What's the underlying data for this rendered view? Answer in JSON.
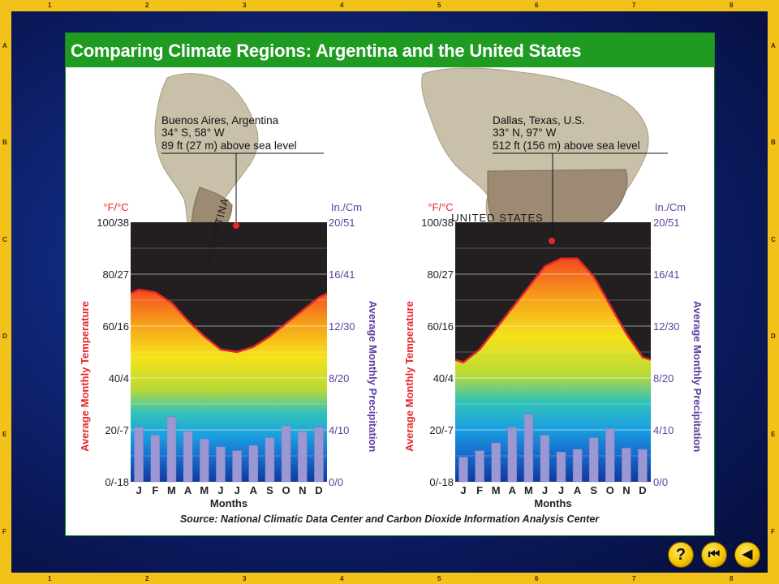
{
  "title": "Comparing Climate Regions: Argentina and the United States",
  "source": "Source: National Climatic Data Center and Carbon Dioxide Information Analysis Center",
  "ruler": {
    "top": [
      "1",
      "2",
      "3",
      "4",
      "5",
      "6",
      "7",
      "8"
    ],
    "side": [
      "A",
      "B",
      "C",
      "D",
      "E",
      "F"
    ]
  },
  "axis_text": {
    "left_unit": "°F/°C",
    "right_unit": "In./Cm",
    "left_label": "Average Monthly Temperature",
    "right_label": "Average Monthly Precipitation",
    "x_label": "Months",
    "left_ticks": [
      "0/-18",
      "20/-7",
      "40/4",
      "60/16",
      "80/27",
      "100/38"
    ],
    "right_ticks": [
      "0/0",
      "4/10",
      "8/20",
      "12/30",
      "16/41",
      "20/51"
    ],
    "months": [
      "J",
      "F",
      "M",
      "A",
      "M",
      "J",
      "J",
      "A",
      "S",
      "O",
      "N",
      "D"
    ]
  },
  "chart_data": [
    {
      "type": "bar",
      "location": "Buenos Aires, Argentina",
      "coords": "34° S, 58° W",
      "elevation": "89 ft (27 m) above sea level",
      "map_label": "ARGENTINA",
      "categories": [
        "J",
        "F",
        "M",
        "A",
        "M",
        "J",
        "J",
        "A",
        "S",
        "O",
        "N",
        "D"
      ],
      "temperature_F": [
        74,
        73,
        69,
        62,
        56,
        51,
        50,
        52,
        56,
        61,
        66,
        71
      ],
      "precipitation_in": [
        4.2,
        3.6,
        5.0,
        3.9,
        3.3,
        2.7,
        2.4,
        2.8,
        3.4,
        4.3,
        3.9,
        4.2
      ],
      "ylim_temp_F": [
        0,
        100
      ],
      "ylim_precip_in": [
        0,
        20
      ]
    },
    {
      "type": "bar",
      "location": "Dallas, Texas, U.S.",
      "coords": "33° N, 97° W",
      "elevation": "512 ft (156 m) above sea level",
      "map_label": "UNITED STATES",
      "categories": [
        "J",
        "F",
        "M",
        "A",
        "M",
        "J",
        "J",
        "A",
        "S",
        "O",
        "N",
        "D"
      ],
      "temperature_F": [
        46,
        51,
        59,
        67,
        75,
        83,
        86,
        86,
        79,
        68,
        57,
        48
      ],
      "precipitation_in": [
        1.9,
        2.4,
        3.0,
        4.2,
        5.2,
        3.6,
        2.3,
        2.5,
        3.4,
        4.1,
        2.6,
        2.5
      ],
      "ylim_temp_F": [
        0,
        100
      ],
      "ylim_precip_in": [
        0,
        20
      ]
    }
  ],
  "colors": {
    "title_bar": "#1f9b22",
    "temp_line": "#e8262a",
    "bars": "#9b97d3",
    "frame": "#f2c21b"
  },
  "nav": {
    "help_label": "?",
    "first_label": "⏮",
    "back_label": "◀"
  }
}
